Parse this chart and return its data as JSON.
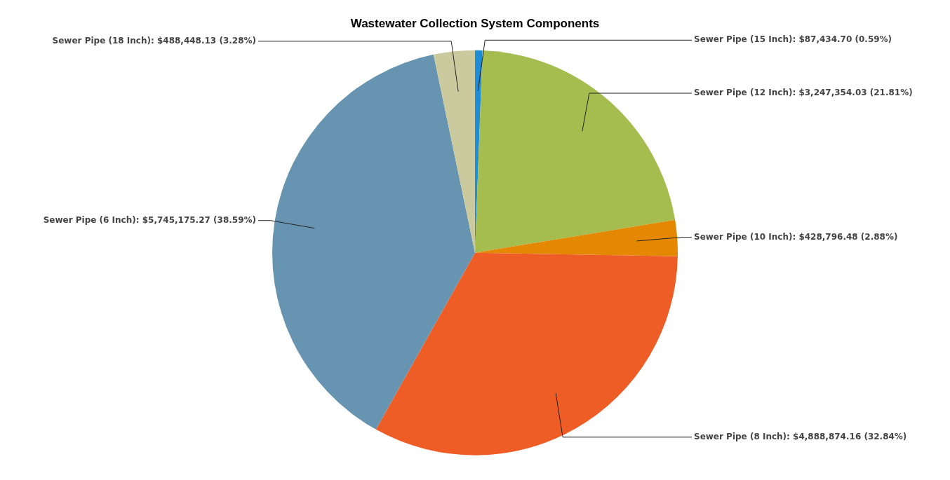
{
  "chart_data": {
    "type": "pie",
    "title": "Wastewater Collection System Components",
    "categories": [
      "Sewer Pipe (15 Inch)",
      "Sewer Pipe (12 Inch)",
      "Sewer Pipe (10 Inch)",
      "Sewer Pipe (8 Inch)",
      "Sewer Pipe (6 Inch)",
      "Sewer Pipe (18 Inch)"
    ],
    "values": [
      87434.7,
      3247354.03,
      428796.48,
      4888874.16,
      5745175.27,
      488448.13
    ],
    "value_labels": [
      "$87,434.70 (0.59%)",
      "$3,247,354.03 (21.81%)",
      "$428,796.48 (2.88%)",
      "$4,888,874.16 (32.84%)",
      "$5,745,175.27 (38.59%)",
      "$488,448.13 (3.28%)"
    ],
    "colors": [
      "#1f8dd6",
      "#a5bc4e",
      "#e48701",
      "#ef5d26",
      "#6794b1",
      "#cbc99e"
    ],
    "legend": false
  }
}
